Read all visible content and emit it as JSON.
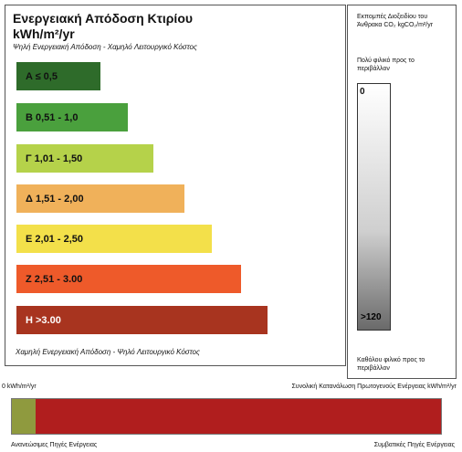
{
  "certificate": {
    "title_line1": "Ενεργειακή Απόδοση Κτιρίου",
    "title_line2": "kWh/m²/yr",
    "subtitle_top": "Ψηλή Ενεργειακή Απόδοση - Χαμηλό Λειτουργικό Κόστος",
    "subtitle_bottom": "Χαμηλή Ενεργειακή Απόδοση - Ψηλό Λειτουργικό Κόστος",
    "classes": [
      {
        "label": "A  ≤ 0,5",
        "color": "#2e6b2a",
        "text_color": "#111111"
      },
      {
        "label": "B  0,51 - 1,0",
        "color": "#4aa03d",
        "text_color": "#111111"
      },
      {
        "label": "Γ  1,01 - 1,50",
        "color": "#b5d24a",
        "text_color": "#111111"
      },
      {
        "label": "Δ  1,51 - 2,00",
        "color": "#f0b15a",
        "text_color": "#111111"
      },
      {
        "label": "E  2,01 - 2,50",
        "color": "#f3e04a",
        "text_color": "#111111"
      },
      {
        "label": "Z  2,51 - 3.00",
        "color": "#ee5a2a",
        "text_color": "#111111"
      },
      {
        "label": "H  >3.00",
        "color": "#a8341f",
        "text_color": "#ffffff"
      }
    ]
  },
  "co2_panel": {
    "title": "Εκπομπές Διοξειδίου του Άνθρακα CO₂ kgCO₂/m²/yr",
    "friendly_label": "Πολύ φιλικό προς το περιβάλλον",
    "unfriendly_label": "Καθόλου φιλικό προς το περιβάλλον",
    "scale_top": "0",
    "scale_bottom": ">120"
  },
  "energy_source": {
    "scale_left": "0 kWh/m²/yr",
    "scale_right": "Συνολική Κατανάλωση Πρωτογενούς Ενέργειας kWh/m²/yr",
    "renewable_label": "Ανανεώσιμες Πηγές Ενέργειας",
    "conventional_label": "Συμβατικές Πηγές Ενέργειας",
    "renewable_share": 0.055,
    "renewable_color": "#8f9a3e",
    "conventional_color": "#b01e1e"
  }
}
